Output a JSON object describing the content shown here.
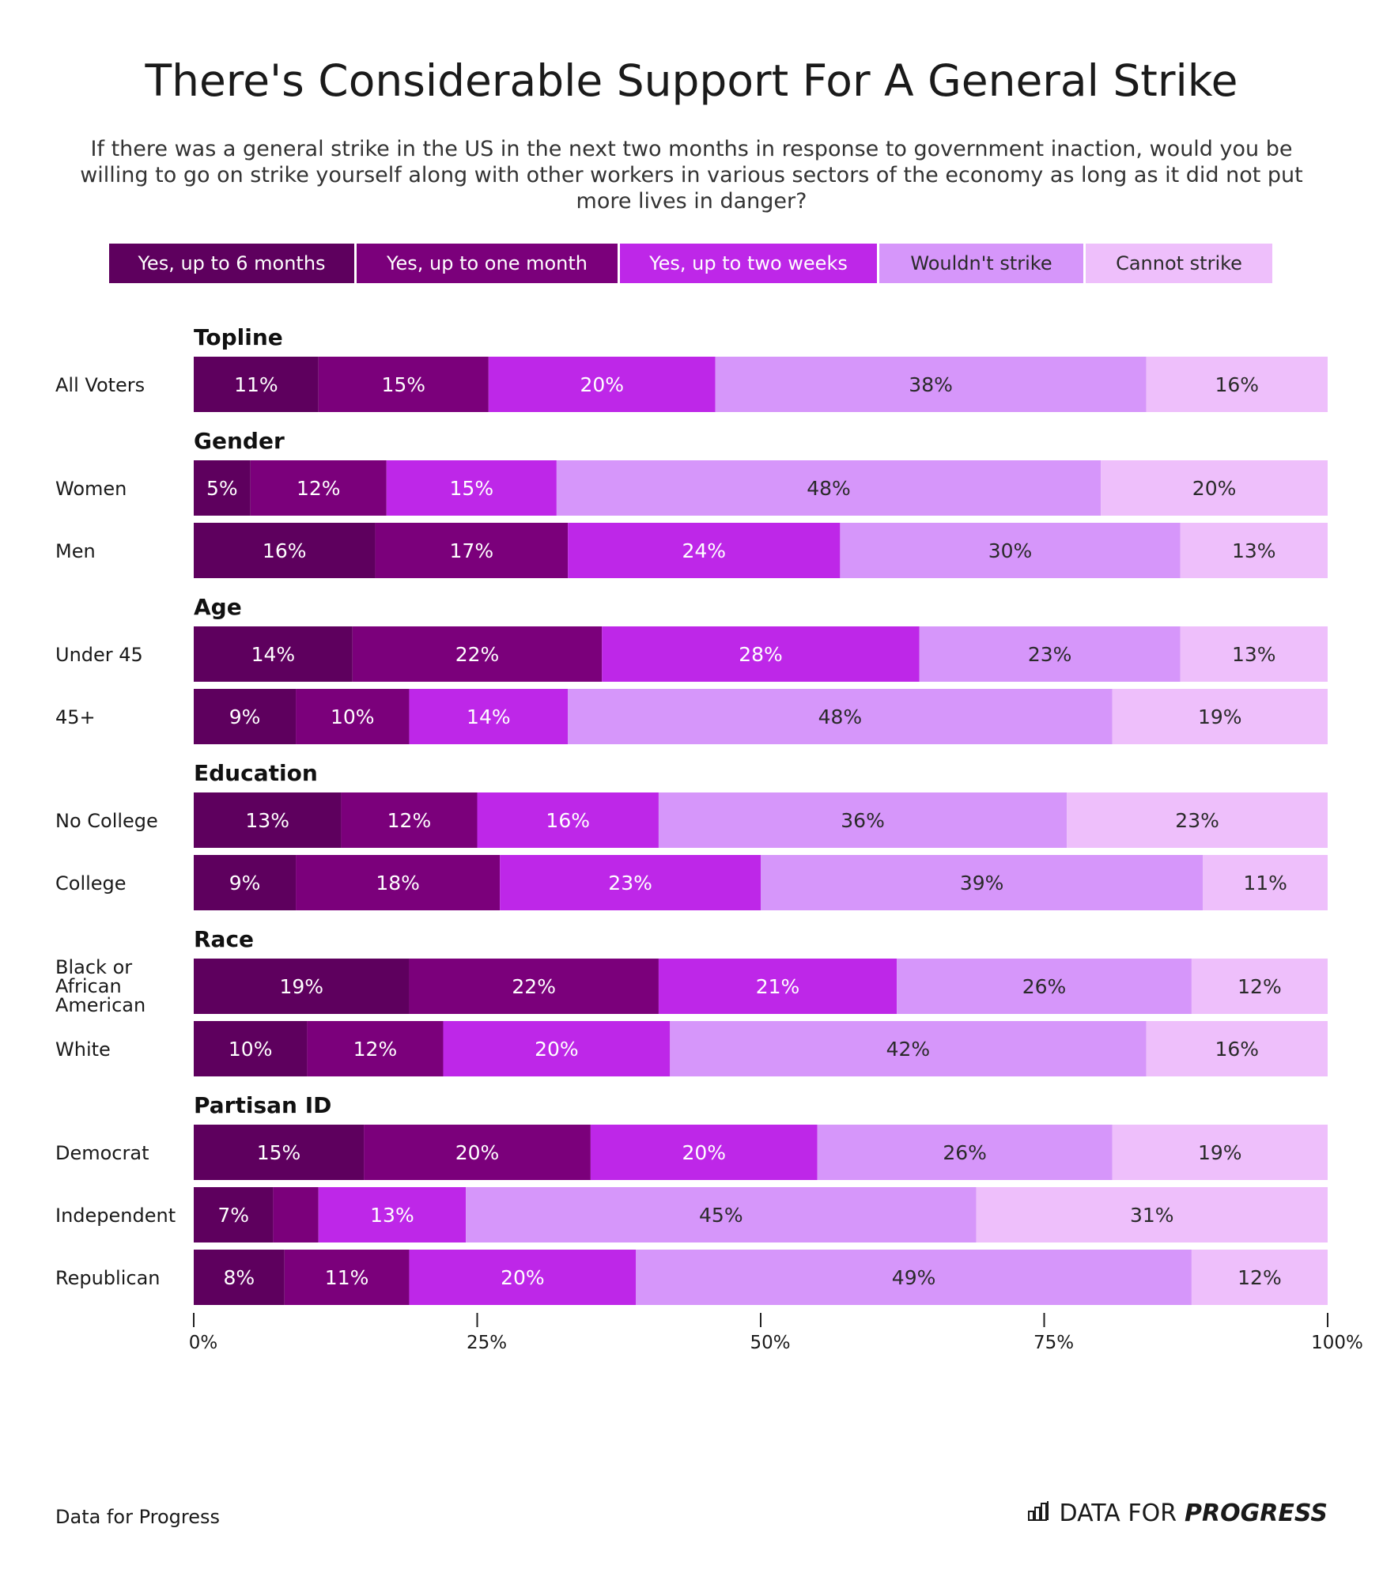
{
  "title": "There's Considerable Support For A General Strike",
  "subtitle": "If there was a general strike in the US in the next two months in response to government inaction, would you be willing to go on strike yourself along with other workers in various sectors of the economy as long as it did not put more lives in danger?",
  "source": "Data for Progress",
  "brand": {
    "prefix": "DATA FOR",
    "strong": "PROGRESS",
    "icon": "bar-chart-icon"
  },
  "colors": {
    "yes_6_months": "#5e005e",
    "yes_one_month": "#7b007b",
    "yes_two_weeks": "#be27e8",
    "wouldnt_strike": "#d696fa",
    "cannot_strike": "#eebffb"
  },
  "chart_data": {
    "type": "bar",
    "orientation": "horizontal",
    "stacked": true,
    "xlim": [
      0,
      100
    ],
    "xticks": [
      "0%",
      "25%",
      "50%",
      "75%",
      "100%"
    ],
    "series_names": [
      "Yes, up to 6 months",
      "Yes, up to one month",
      "Yes, up to two weeks",
      "Wouldn't strike",
      "Cannot strike"
    ],
    "groups": [
      {
        "name": "Topline",
        "rows": [
          {
            "label": "All Voters",
            "values": [
              11,
              15,
              20,
              38,
              16
            ]
          }
        ]
      },
      {
        "name": "Gender",
        "rows": [
          {
            "label": "Women",
            "values": [
              5,
              12,
              15,
              48,
              20
            ]
          },
          {
            "label": "Men",
            "values": [
              16,
              17,
              24,
              30,
              13
            ]
          }
        ]
      },
      {
        "name": "Age",
        "rows": [
          {
            "label": "Under 45",
            "values": [
              14,
              22,
              28,
              23,
              13
            ]
          },
          {
            "label": "45+",
            "values": [
              9,
              10,
              14,
              48,
              19
            ]
          }
        ]
      },
      {
        "name": "Education",
        "rows": [
          {
            "label": "No College",
            "values": [
              13,
              12,
              16,
              36,
              23
            ]
          },
          {
            "label": "College",
            "values": [
              9,
              18,
              23,
              39,
              11
            ]
          }
        ]
      },
      {
        "name": "Race",
        "rows": [
          {
            "label": "Black or African American",
            "label_lines": [
              "Black or",
              "African",
              "American"
            ],
            "values": [
              19,
              22,
              21,
              26,
              12
            ]
          },
          {
            "label": "White",
            "values": [
              10,
              12,
              20,
              42,
              16
            ]
          }
        ]
      },
      {
        "name": "Partisan ID",
        "rows": [
          {
            "label": "Democrat",
            "values": [
              15,
              20,
              20,
              26,
              19
            ]
          },
          {
            "label": "Independent",
            "values": [
              7,
              4,
              13,
              45,
              31
            ],
            "hidden_labels": [
              1
            ]
          },
          {
            "label": "Republican",
            "values": [
              8,
              11,
              20,
              49,
              12
            ]
          }
        ]
      }
    ]
  }
}
